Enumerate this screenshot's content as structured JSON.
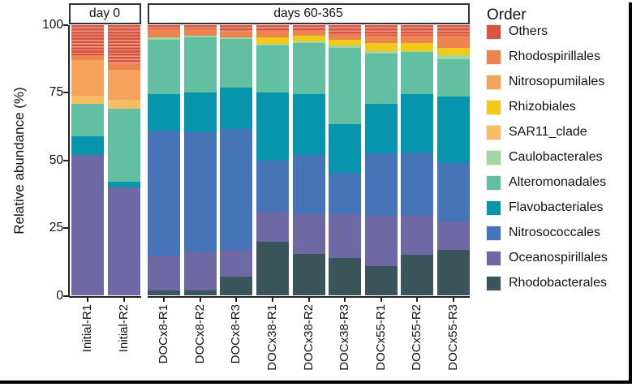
{
  "chart_data": {
    "type": "bar",
    "stacked": true,
    "title": "",
    "ylabel": "Relative abundance (%)",
    "xlabel": "",
    "ylim": [
      0,
      100
    ],
    "yticks": [
      0,
      25,
      50,
      75,
      100
    ],
    "grid": false,
    "legend_title": "Order",
    "legend_position": "right",
    "orders": [
      {
        "name": "Others",
        "color": "#d8553f",
        "striped": true
      },
      {
        "name": "Rhodospirillales",
        "color": "#ec8450",
        "striped": false
      },
      {
        "name": "Nitrosopumilales",
        "color": "#f5a25c",
        "striped": false
      },
      {
        "name": "Rhizobiales",
        "color": "#f2c918",
        "striped": false
      },
      {
        "name": "SAR11_clade",
        "color": "#f7bd62",
        "striped": false
      },
      {
        "name": "Caulobacterales",
        "color": "#a3d5a0",
        "striped": false
      },
      {
        "name": "Alteromonadales",
        "color": "#62bfa2",
        "striped": false
      },
      {
        "name": "Flavobacteriales",
        "color": "#0795ad",
        "striped": false
      },
      {
        "name": "Nitrosococcales",
        "color": "#4575b8",
        "striped": false
      },
      {
        "name": "Oceanospirillales",
        "color": "#6e68a4",
        "striped": false
      },
      {
        "name": "Rhodobacterales",
        "color": "#3a555b",
        "striped": false
      }
    ],
    "stack_order_bottom_to_top": [
      "Rhodobacterales",
      "Oceanospirillales",
      "Nitrosococcales",
      "Flavobacteriales",
      "Alteromonadales",
      "Caulobacterales",
      "SAR11_clade",
      "Rhizobiales",
      "Nitrosopumilales",
      "Rhodospirillales",
      "Others"
    ],
    "facets": [
      {
        "label": "day 0",
        "bars": [
          {
            "label": "Initial-R1",
            "values": {
              "Rhodobacterales": 0,
              "Oceanospirillales": 52,
              "Nitrosococcales": 0,
              "Flavobacteriales": 7,
              "Alteromonadales": 12,
              "Caulobacterales": 0,
              "SAR11_clade": 3,
              "Rhizobiales": 0,
              "Nitrosopumilales": 13,
              "Rhodospirillales": 2,
              "Others": 11
            }
          },
          {
            "label": "Initial-R2",
            "values": {
              "Rhodobacterales": 0,
              "Oceanospirillales": 40,
              "Nitrosococcales": 0,
              "Flavobacteriales": 2,
              "Alteromonadales": 27,
              "Caulobacterales": 0,
              "SAR11_clade": 3.5,
              "Rhizobiales": 0,
              "Nitrosopumilales": 11,
              "Rhodospirillales": 2.5,
              "Others": 14
            }
          }
        ]
      },
      {
        "label": "days 60-365",
        "bars": [
          {
            "label": "DOCx8-R1",
            "values": {
              "Rhodobacterales": 2,
              "Oceanospirillales": 12.5,
              "Nitrosococcales": 46.5,
              "Flavobacteriales": 13.5,
              "Alteromonadales": 20,
              "Caulobacterales": 1,
              "SAR11_clade": 0,
              "Rhizobiales": 0,
              "Nitrosopumilales": 0,
              "Rhodospirillales": 3,
              "Others": 1.5
            }
          },
          {
            "label": "DOCx8-R2",
            "values": {
              "Rhodobacterales": 2,
              "Oceanospirillales": 14,
              "Nitrosococcales": 44.5,
              "Flavobacteriales": 14.5,
              "Alteromonadales": 20.5,
              "Caulobacterales": 0.5,
              "SAR11_clade": 0,
              "Rhizobiales": 0,
              "Nitrosopumilales": 0,
              "Rhodospirillales": 2.5,
              "Others": 1.5
            }
          },
          {
            "label": "DOCx8-R3",
            "values": {
              "Rhodobacterales": 7,
              "Oceanospirillales": 10,
              "Nitrosococcales": 44.5,
              "Flavobacteriales": 15.5,
              "Alteromonadales": 18,
              "Caulobacterales": 0.5,
              "SAR11_clade": 0,
              "Rhizobiales": 0,
              "Nitrosopumilales": 0,
              "Rhodospirillales": 2,
              "Others": 2.5
            }
          },
          {
            "label": "DOCx38-R1",
            "values": {
              "Rhodobacterales": 20,
              "Oceanospirillales": 11,
              "Nitrosococcales": 19,
              "Flavobacteriales": 25,
              "Alteromonadales": 17.5,
              "Caulobacterales": 0.5,
              "SAR11_clade": 0,
              "Rhizobiales": 2.5,
              "Nitrosopumilales": 0,
              "Rhodospirillales": 2.5,
              "Others": 2
            }
          },
          {
            "label": "DOCx38-R2",
            "values": {
              "Rhodobacterales": 15.5,
              "Oceanospirillales": 14.5,
              "Nitrosococcales": 22,
              "Flavobacteriales": 22.5,
              "Alteromonadales": 19,
              "Caulobacterales": 0.5,
              "SAR11_clade": 0,
              "Rhizobiales": 2,
              "Nitrosopumilales": 0,
              "Rhodospirillales": 2,
              "Others": 2
            }
          },
          {
            "label": "DOCx38-R3",
            "values": {
              "Rhodobacterales": 14,
              "Oceanospirillales": 16,
              "Nitrosococcales": 15.5,
              "Flavobacteriales": 18,
              "Alteromonadales": 28,
              "Caulobacterales": 1,
              "SAR11_clade": 0,
              "Rhizobiales": 2,
              "Nitrosopumilales": 0,
              "Rhodospirillales": 2,
              "Others": 3.5
            }
          },
          {
            "label": "DOCx55-R1",
            "values": {
              "Rhodobacterales": 11,
              "Oceanospirillales": 18.5,
              "Nitrosococcales": 23,
              "Flavobacteriales": 18.5,
              "Alteromonadales": 18.5,
              "Caulobacterales": 1,
              "SAR11_clade": 0,
              "Rhizobiales": 3,
              "Nitrosopumilales": 0,
              "Rhodospirillales": 2.5,
              "Others": 4
            }
          },
          {
            "label": "DOCx55-R2",
            "values": {
              "Rhodobacterales": 15,
              "Oceanospirillales": 14.5,
              "Nitrosococcales": 23.5,
              "Flavobacteriales": 21.5,
              "Alteromonadales": 15.5,
              "Caulobacterales": 0.5,
              "SAR11_clade": 0,
              "Rhizobiales": 3,
              "Nitrosopumilales": 0,
              "Rhodospirillales": 2.5,
              "Others": 4
            }
          },
          {
            "label": "DOCx55-R3",
            "values": {
              "Rhodobacterales": 17,
              "Oceanospirillales": 10.5,
              "Nitrosococcales": 21.5,
              "Flavobacteriales": 24.5,
              "Alteromonadales": 14,
              "Caulobacterales": 1.5,
              "SAR11_clade": 0,
              "Rhizobiales": 2.5,
              "Nitrosopumilales": 0,
              "Rhodospirillales": 4.5,
              "Others": 4
            }
          }
        ]
      }
    ]
  }
}
